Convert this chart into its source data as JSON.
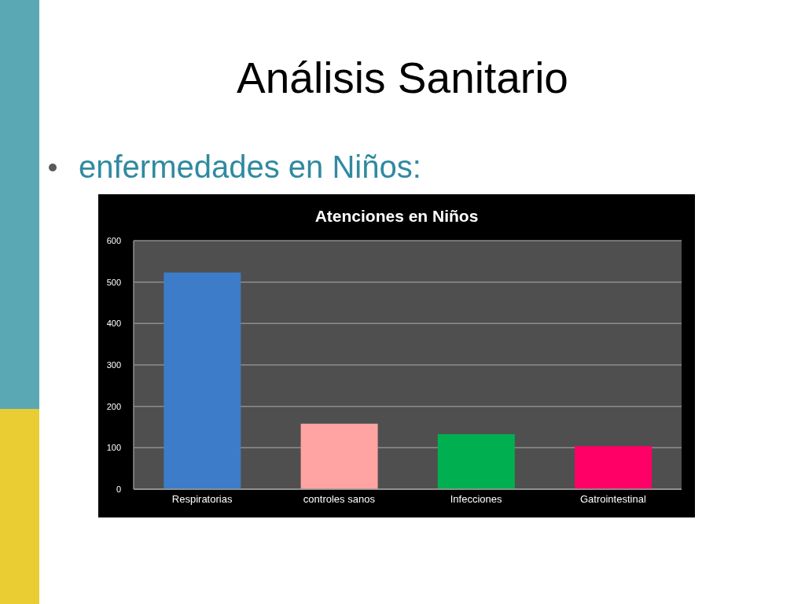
{
  "chart_data": {
    "type": "bar",
    "title": "Atenciones en Niños",
    "annotations": [
      "Análisis Sanitario",
      "enfermedades en Niños:"
    ],
    "categories": [
      "Respiratorias",
      "controles sanos",
      "Infecciones",
      "Gatrointestinal"
    ],
    "values": [
      523,
      158,
      133,
      104
    ],
    "colors": [
      "#3d7cc9",
      "#ffa3a3",
      "#00b050",
      "#ff0066"
    ],
    "ylim": [
      0,
      600
    ],
    "yticks": [
      0,
      100,
      200,
      300,
      400,
      500,
      600
    ],
    "grid": "y"
  }
}
